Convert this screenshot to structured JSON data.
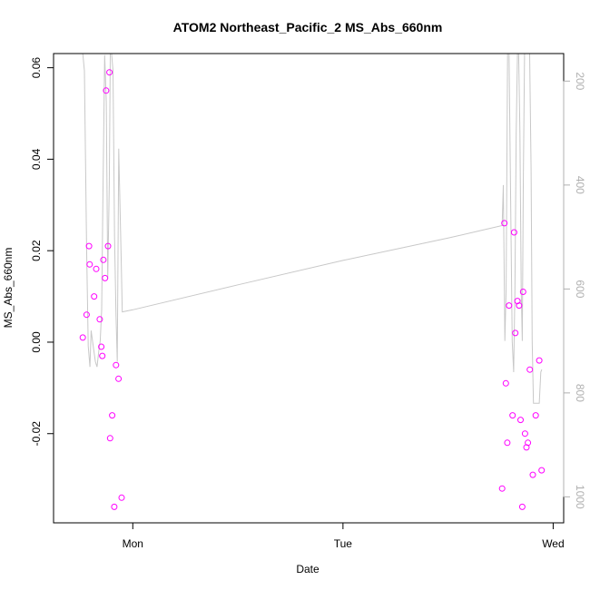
{
  "chart_data": {
    "type": "scatter",
    "title": "ATOM2 Northeast_Pacific_2 MS_Abs_660nm",
    "xlabel": "Date",
    "ylabel": "MS_Abs_660nm",
    "x_unit": "days since Sunday 00:00 (Mon = 1, Tue = 2, Wed = 3)",
    "xlim": [
      0.623,
      3.05
    ],
    "ylim": [
      -0.0395,
      0.0631
    ],
    "x_ticks": [
      {
        "value": 1,
        "label": "Mon"
      },
      {
        "value": 2,
        "label": "Tue"
      },
      {
        "value": 3,
        "label": "Wed"
      }
    ],
    "y_ticks": [
      {
        "value": -0.02,
        "label": "-0.02"
      },
      {
        "value": 0.0,
        "label": "0.00"
      },
      {
        "value": 0.02,
        "label": "0.02"
      },
      {
        "value": 0.04,
        "label": "0.04"
      },
      {
        "value": 0.06,
        "label": "0.06"
      }
    ],
    "right_axis": {
      "label": "",
      "color": "#b0b0b0",
      "reversed": true,
      "lim": [
        1050,
        147
      ],
      "ticks": [
        {
          "value": 200,
          "label": "200"
        },
        {
          "value": 400,
          "label": "400"
        },
        {
          "value": 600,
          "label": "600"
        },
        {
          "value": 800,
          "label": "800"
        },
        {
          "value": 1000,
          "label": "1000"
        }
      ]
    },
    "series": [
      {
        "type": "scatter",
        "color": "#ff00ff",
        "points": [
          [
            0.762,
            0.001
          ],
          [
            0.78,
            0.006
          ],
          [
            0.792,
            0.021
          ],
          [
            0.795,
            0.017
          ],
          [
            0.816,
            0.01
          ],
          [
            0.826,
            0.016
          ],
          [
            0.843,
            0.005
          ],
          [
            0.85,
            -0.001
          ],
          [
            0.855,
            -0.003
          ],
          [
            0.86,
            0.018
          ],
          [
            0.868,
            0.014
          ],
          [
            0.873,
            0.055
          ],
          [
            0.882,
            0.021
          ],
          [
            0.889,
            0.059
          ],
          [
            0.892,
            -0.021
          ],
          [
            0.902,
            -0.016
          ],
          [
            0.912,
            -0.036
          ],
          [
            0.92,
            -0.005
          ],
          [
            0.932,
            -0.008
          ],
          [
            0.947,
            -0.034
          ],
          [
            2.757,
            -0.032
          ],
          [
            2.768,
            0.026
          ],
          [
            2.775,
            -0.009
          ],
          [
            2.782,
            -0.022
          ],
          [
            2.79,
            0.008
          ],
          [
            2.807,
            -0.016
          ],
          [
            2.814,
            0.024
          ],
          [
            2.82,
            0.002
          ],
          [
            2.83,
            0.009
          ],
          [
            2.838,
            0.008
          ],
          [
            2.845,
            -0.017
          ],
          [
            2.853,
            -0.036
          ],
          [
            2.857,
            0.011
          ],
          [
            2.866,
            -0.02
          ],
          [
            2.873,
            -0.023
          ],
          [
            2.88,
            -0.022
          ],
          [
            2.889,
            -0.006
          ],
          [
            2.903,
            -0.029
          ],
          [
            2.917,
            -0.016
          ],
          [
            2.934,
            -0.004
          ],
          [
            2.945,
            -0.028
          ]
        ]
      },
      {
        "type": "line",
        "axis": "right",
        "color": "#c8c8c8",
        "points": [
          [
            0.762,
            147
          ],
          [
            0.77,
            180
          ],
          [
            0.78,
            520
          ],
          [
            0.788,
            710
          ],
          [
            0.796,
            750
          ],
          [
            0.802,
            680
          ],
          [
            0.81,
            705
          ],
          [
            0.822,
            740
          ],
          [
            0.83,
            750
          ],
          [
            0.838,
            720
          ],
          [
            0.845,
            700
          ],
          [
            0.852,
            640
          ],
          [
            0.858,
            420
          ],
          [
            0.866,
            150
          ],
          [
            0.874,
            240
          ],
          [
            0.881,
            580
          ],
          [
            0.888,
            400
          ],
          [
            0.893,
            147
          ],
          [
            0.899,
            147
          ],
          [
            0.906,
            180
          ],
          [
            0.913,
            500
          ],
          [
            0.92,
            650
          ],
          [
            0.926,
            740
          ],
          [
            0.933,
            330
          ],
          [
            0.945,
            550
          ],
          [
            0.95,
            644
          ],
          [
            1.0,
            640
          ],
          [
            1.5,
            592
          ],
          [
            2.0,
            545
          ],
          [
            2.5,
            502
          ],
          [
            2.757,
            478
          ],
          [
            2.763,
            400
          ],
          [
            2.77,
            700
          ],
          [
            2.776,
            600
          ],
          [
            2.783,
            147
          ],
          [
            2.79,
            147
          ],
          [
            2.797,
            400
          ],
          [
            2.805,
            700
          ],
          [
            2.812,
            760
          ],
          [
            2.818,
            600
          ],
          [
            2.824,
            300
          ],
          [
            2.83,
            147
          ],
          [
            2.836,
            147
          ],
          [
            2.842,
            300
          ],
          [
            2.848,
            600
          ],
          [
            2.853,
            700
          ],
          [
            2.858,
            400
          ],
          [
            2.864,
            147
          ],
          [
            2.872,
            147
          ],
          [
            2.88,
            147
          ],
          [
            2.888,
            147
          ],
          [
            2.895,
            370
          ],
          [
            2.9,
            700
          ],
          [
            2.906,
            820
          ],
          [
            2.913,
            820
          ],
          [
            2.92,
            820
          ],
          [
            2.927,
            820
          ],
          [
            2.934,
            820
          ],
          [
            2.941,
            760
          ],
          [
            2.946,
            755
          ]
        ]
      }
    ],
    "grid": false,
    "legend": "none"
  }
}
